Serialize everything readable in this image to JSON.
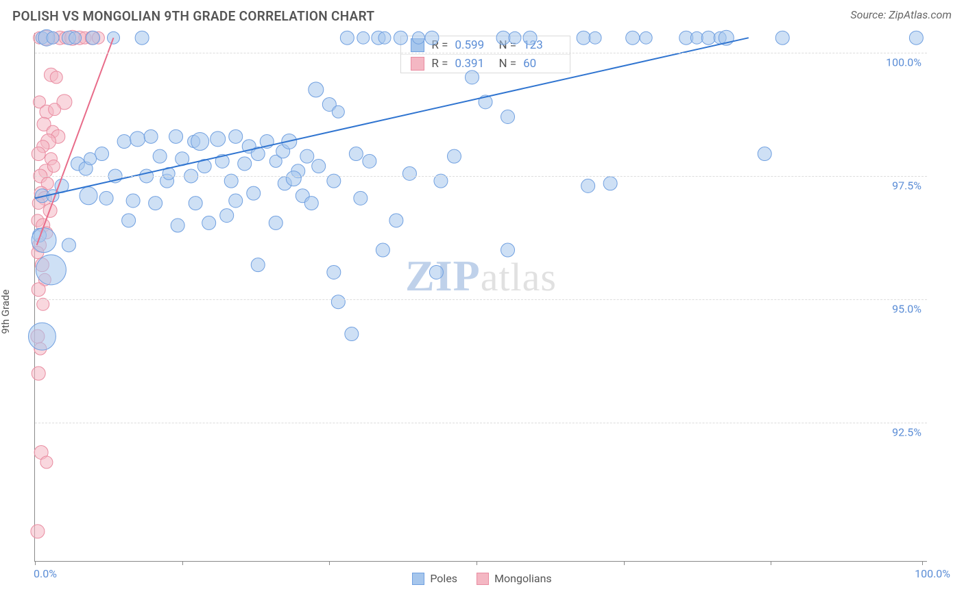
{
  "header": {
    "title": "POLISH VS MONGOLIAN 9TH GRADE CORRELATION CHART",
    "source": "Source: ZipAtlas.com"
  },
  "chart": {
    "type": "scatter",
    "y_axis_label": "9th Grade",
    "xlim": [
      0,
      100
    ],
    "ylim": [
      89.7,
      100.4
    ],
    "xticks": [
      0,
      16.5,
      33,
      49.5,
      66,
      82.5,
      99.5
    ],
    "xtick_labels": {
      "0": "0.0%",
      "100": "100.0%"
    },
    "ytick_values": [
      92.5,
      95.0,
      97.5,
      100.0
    ],
    "ytick_labels": [
      "92.5%",
      "95.0%",
      "97.5%",
      "100.0%"
    ],
    "grid_color": "#dcdcdc",
    "background_color": "#ffffff",
    "axis_label_color": "#5b8dd6",
    "marker_stroke_width": 1,
    "trendline_width": 2,
    "series": {
      "poles": {
        "label": "Poles",
        "fill": "#a6c6ec",
        "fill_opacity": 0.55,
        "stroke": "#6f9fe0",
        "trend_color": "#2f74d0",
        "trend_p1": [
          0,
          97.05
        ],
        "trend_p2": [
          80,
          100.3
        ],
        "R": "0.599",
        "N": "123",
        "points": [
          [
            0.8,
            100.3,
            9
          ],
          [
            1.3,
            100.3,
            12
          ],
          [
            2.0,
            100.3,
            9
          ],
          [
            3.8,
            100.3,
            10
          ],
          [
            4.5,
            100.3,
            9
          ],
          [
            6.5,
            100.3,
            10
          ],
          [
            8.8,
            100.3,
            9
          ],
          [
            12.0,
            100.3,
            10
          ],
          [
            35.0,
            100.3,
            10
          ],
          [
            36.8,
            100.3,
            9
          ],
          [
            38.5,
            100.3,
            10
          ],
          [
            39.2,
            100.3,
            9
          ],
          [
            41.0,
            100.3,
            10
          ],
          [
            43.0,
            100.3,
            9
          ],
          [
            44.5,
            100.3,
            10
          ],
          [
            52.5,
            100.3,
            10
          ],
          [
            53.8,
            100.3,
            9
          ],
          [
            55.5,
            100.3,
            10
          ],
          [
            61.5,
            100.3,
            10
          ],
          [
            62.8,
            100.3,
            9
          ],
          [
            67.0,
            100.3,
            10
          ],
          [
            68.5,
            100.3,
            9
          ],
          [
            73.0,
            100.3,
            10
          ],
          [
            74.2,
            100.3,
            9
          ],
          [
            75.5,
            100.3,
            10
          ],
          [
            76.8,
            100.3,
            9
          ],
          [
            77.5,
            100.3,
            11
          ],
          [
            83.8,
            100.3,
            10
          ],
          [
            98.8,
            100.3,
            10
          ],
          [
            31.5,
            99.25,
            11
          ],
          [
            49.0,
            99.5,
            10
          ],
          [
            50.5,
            99.0,
            10
          ],
          [
            33.0,
            98.95,
            10
          ],
          [
            34.0,
            98.8,
            9
          ],
          [
            53.0,
            98.7,
            10
          ],
          [
            7.5,
            97.95,
            10
          ],
          [
            10.0,
            98.2,
            10
          ],
          [
            11.5,
            98.25,
            11
          ],
          [
            13.0,
            98.3,
            10
          ],
          [
            14.0,
            97.9,
            10
          ],
          [
            15.8,
            98.3,
            10
          ],
          [
            16.5,
            97.85,
            10
          ],
          [
            17.8,
            98.2,
            9
          ],
          [
            18.5,
            98.2,
            13
          ],
          [
            19.0,
            97.7,
            10
          ],
          [
            20.5,
            98.25,
            11
          ],
          [
            21.0,
            97.8,
            10
          ],
          [
            22.5,
            98.3,
            10
          ],
          [
            23.5,
            97.75,
            10
          ],
          [
            24.0,
            98.1,
            10
          ],
          [
            25.0,
            97.95,
            10
          ],
          [
            26.0,
            98.2,
            10
          ],
          [
            27.0,
            97.8,
            9
          ],
          [
            27.8,
            98.0,
            10
          ],
          [
            28.5,
            98.2,
            11
          ],
          [
            29.5,
            97.6,
            10
          ],
          [
            30.5,
            97.9,
            10
          ],
          [
            31.8,
            97.7,
            10
          ],
          [
            36.0,
            97.95,
            10
          ],
          [
            37.5,
            97.8,
            10
          ],
          [
            47.0,
            97.9,
            10
          ],
          [
            81.8,
            97.95,
            10
          ],
          [
            4.8,
            97.75,
            10
          ],
          [
            5.7,
            97.65,
            10
          ],
          [
            6.2,
            97.85,
            9
          ],
          [
            9.0,
            97.5,
            10
          ],
          [
            12.5,
            97.5,
            10
          ],
          [
            14.8,
            97.4,
            10
          ],
          [
            15.0,
            97.55,
            9
          ],
          [
            17.5,
            97.5,
            10
          ],
          [
            22.0,
            97.4,
            10
          ],
          [
            28.0,
            97.35,
            10
          ],
          [
            29.0,
            97.45,
            11
          ],
          [
            33.5,
            97.4,
            10
          ],
          [
            42.0,
            97.55,
            10
          ],
          [
            45.5,
            97.4,
            10
          ],
          [
            62.0,
            97.3,
            10
          ],
          [
            64.5,
            97.35,
            10
          ],
          [
            0.8,
            97.1,
            10
          ],
          [
            2.0,
            97.1,
            9
          ],
          [
            3.0,
            97.3,
            10
          ],
          [
            6.0,
            97.1,
            13
          ],
          [
            8.0,
            97.05,
            10
          ],
          [
            11.0,
            97.0,
            10
          ],
          [
            13.5,
            96.95,
            10
          ],
          [
            18.0,
            96.95,
            10
          ],
          [
            22.5,
            97.0,
            10
          ],
          [
            24.5,
            97.15,
            10
          ],
          [
            30.0,
            97.1,
            10
          ],
          [
            31.0,
            96.95,
            10
          ],
          [
            36.5,
            97.05,
            10
          ],
          [
            10.5,
            96.6,
            10
          ],
          [
            16.0,
            96.5,
            10
          ],
          [
            19.5,
            96.55,
            10
          ],
          [
            21.5,
            96.7,
            10
          ],
          [
            27.0,
            96.55,
            10
          ],
          [
            40.5,
            96.6,
            10
          ],
          [
            0.5,
            96.3,
            10
          ],
          [
            3.8,
            96.1,
            10
          ],
          [
            39.0,
            96.0,
            10
          ],
          [
            53.0,
            96.0,
            10
          ],
          [
            1.0,
            96.2,
            18
          ],
          [
            1.8,
            95.6,
            22
          ],
          [
            25.0,
            95.7,
            10
          ],
          [
            33.5,
            95.55,
            10
          ],
          [
            45.0,
            95.55,
            10
          ],
          [
            34.0,
            94.95,
            10
          ],
          [
            35.5,
            94.3,
            10
          ],
          [
            0.8,
            94.25,
            20
          ]
        ]
      },
      "mongolians": {
        "label": "Mongolians",
        "fill": "#f4b7c3",
        "fill_opacity": 0.55,
        "stroke": "#e98ba0",
        "trend_color": "#e86b89",
        "trend_p1": [
          0.2,
          96.1
        ],
        "trend_p2": [
          8.8,
          100.3
        ],
        "R": "0.391",
        "N": "60",
        "points": [
          [
            0.5,
            100.3,
            9
          ],
          [
            1.2,
            100.3,
            11
          ],
          [
            2.0,
            100.3,
            9
          ],
          [
            2.8,
            100.3,
            10
          ],
          [
            3.4,
            100.3,
            9
          ],
          [
            4.2,
            100.3,
            11
          ],
          [
            5.0,
            100.3,
            10
          ],
          [
            5.6,
            100.3,
            9
          ],
          [
            6.4,
            100.3,
            10
          ],
          [
            7.1,
            100.3,
            9
          ],
          [
            1.8,
            99.55,
            10
          ],
          [
            2.4,
            99.5,
            9
          ],
          [
            3.3,
            99.0,
            11
          ],
          [
            0.5,
            99.0,
            9
          ],
          [
            1.3,
            98.8,
            10
          ],
          [
            2.2,
            98.85,
            9
          ],
          [
            1.0,
            98.55,
            10
          ],
          [
            2.0,
            98.4,
            9
          ],
          [
            2.6,
            98.3,
            10
          ],
          [
            1.5,
            98.2,
            11
          ],
          [
            0.9,
            98.1,
            9
          ],
          [
            0.4,
            97.95,
            10
          ],
          [
            1.8,
            97.85,
            9
          ],
          [
            1.2,
            97.6,
            10
          ],
          [
            2.1,
            97.7,
            9
          ],
          [
            0.6,
            97.5,
            10
          ],
          [
            1.4,
            97.35,
            9
          ],
          [
            0.7,
            97.15,
            10
          ],
          [
            1.1,
            97.05,
            10
          ],
          [
            0.4,
            96.95,
            9
          ],
          [
            1.7,
            96.8,
            10
          ],
          [
            0.3,
            96.6,
            9
          ],
          [
            0.9,
            96.5,
            10
          ],
          [
            1.3,
            96.35,
            9
          ],
          [
            0.5,
            96.1,
            10
          ],
          [
            0.3,
            95.95,
            9
          ],
          [
            0.8,
            95.7,
            10
          ],
          [
            1.1,
            95.4,
            9
          ],
          [
            0.4,
            95.2,
            10
          ],
          [
            0.9,
            94.9,
            9
          ],
          [
            0.3,
            94.25,
            10
          ],
          [
            0.6,
            94.0,
            9
          ],
          [
            0.4,
            93.5,
            10
          ],
          [
            0.7,
            91.9,
            10
          ],
          [
            1.3,
            91.7,
            9
          ],
          [
            0.3,
            90.3,
            10
          ]
        ]
      }
    },
    "legend_bottom": [
      "Poles",
      "Mongolians"
    ],
    "watermark": {
      "zip": "ZIP",
      "atlas": "atlas"
    }
  }
}
